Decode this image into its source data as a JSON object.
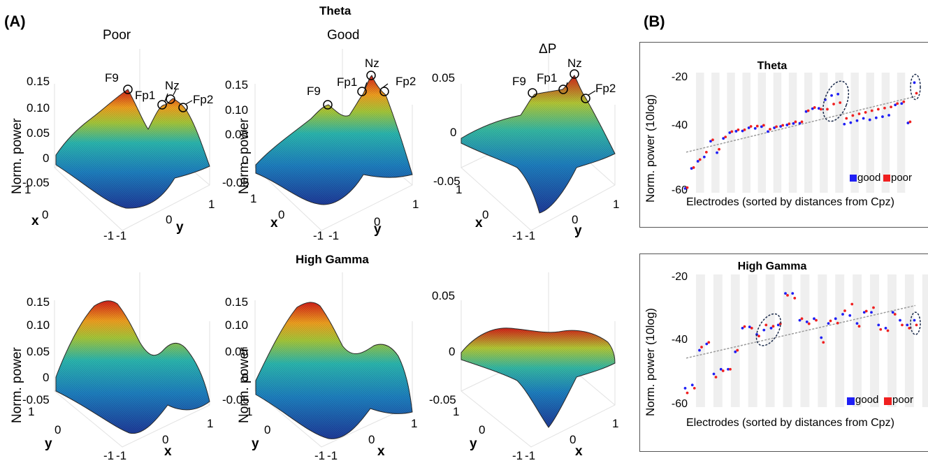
{
  "panel_a_letter": "(A)",
  "panel_b_letter": "(B)",
  "theta_title": "Theta",
  "gamma_title": "High Gamma",
  "col_poor": "Poor",
  "col_good": "Good",
  "col_dp": "ΔP",
  "ylabel_norm": "Norm. power",
  "electrode_labels": {
    "f9": "F9",
    "fp1": "Fp1",
    "nz": "Nz",
    "fp2": "Fp2"
  },
  "axis_letters": {
    "x": "x",
    "y": "y"
  },
  "ticks_big": [
    "0.15",
    "0.10",
    "0.05",
    "0",
    "-0.05"
  ],
  "ticks_small": [
    "0.05",
    "0",
    "-0.05"
  ],
  "ticks_small_theta": [
    "0.05",
    "0",
    "-0.05"
  ],
  "ticks_pm": [
    "1",
    "0",
    "-1"
  ],
  "colors": {
    "good": "#1f1ff5",
    "poor": "#f02020",
    "band": "#efefef",
    "trend": "#9a9a9a",
    "surface_low": "#1f3c9a",
    "surface_mid": "#2bb7b0",
    "surface_high": "#d4221a"
  },
  "chart_data": [
    {
      "type": "scatter",
      "title": "Theta",
      "xlabel": "Electrodes (sorted by distances from Cpz)",
      "ylabel": "Norm. power (10log)",
      "ylim": [
        -60,
        -18
      ],
      "yticks": [
        "-20",
        "-40",
        "-60"
      ],
      "legend": [
        "good",
        "poor"
      ],
      "legend_position": "bottom-right",
      "series": [
        {
          "name": "good",
          "values": [
            -58.5,
            -51.5,
            -49,
            -47.5,
            -42,
            -46,
            -41,
            -39,
            -38.5,
            -38.4,
            -37.3,
            -37.5,
            -36.9,
            -38.6,
            -37.3,
            -36.8,
            -36.3,
            -35.8,
            -35.7,
            -31.6,
            -30.6,
            -30.5,
            -27.5,
            -26,
            -25.5,
            -36,
            -35.5,
            -34.8,
            -34,
            -34.5,
            -33.8,
            -33.4,
            -32.9,
            -29.3,
            -28.8,
            -35.6,
            -21.5
          ]
        },
        {
          "name": "poor",
          "values": [
            -58.2,
            -51.2,
            -48.4,
            -45.8,
            -41.5,
            -44.8,
            -40.5,
            -38.6,
            -38,
            -38,
            -36.8,
            -36.7,
            -36.4,
            -37.8,
            -36.9,
            -36.4,
            -35.9,
            -35.2,
            -35.2,
            -31.3,
            -30.2,
            -30.8,
            -30.8,
            -29,
            -28.5,
            -34,
            -33,
            -32.4,
            -31.9,
            -31.3,
            -30.8,
            -30.4,
            -30,
            -28.8,
            -28.2,
            -35.2,
            -25.2
          ]
        }
      ]
    },
    {
      "type": "scatter",
      "title": "High Gamma",
      "xlabel": "Electrodes (sorted by distances from Cpz)",
      "ylabel": "Norm. power (10log)",
      "ylim": [
        -60,
        -18
      ],
      "yticks": [
        "-20",
        "-40",
        "-60"
      ],
      "legend": [
        "good",
        "poor"
      ],
      "legend_position": "bottom-right",
      "series": [
        {
          "name": "good",
          "values": [
            -54,
            -53,
            -42,
            -40,
            -49.5,
            -48,
            -48,
            -42.5,
            -35,
            -34.6,
            -37,
            -35.6,
            -35,
            -34,
            -24,
            -24,
            -32.5,
            -33,
            -32,
            -38,
            -33.5,
            -32,
            -30.6,
            -31,
            -33.5,
            -30,
            -30,
            -34,
            -35,
            -30,
            -32.5,
            -34,
            -32.5
          ]
        },
        {
          "name": "poor",
          "values": [
            -55.5,
            -54,
            -41,
            -39.5,
            -50.5,
            -48.5,
            -48,
            -42,
            -34.5,
            -35,
            -37.5,
            -34,
            -34.4,
            -33.6,
            -24.6,
            -25.5,
            -32,
            -33.6,
            -32.5,
            -39.5,
            -32.7,
            -33.4,
            -29.5,
            -27.4,
            -34.4,
            -29.6,
            -28.5,
            -35.4,
            -35.8,
            -30.6,
            -34,
            -35,
            -34
          ]
        }
      ]
    }
  ]
}
